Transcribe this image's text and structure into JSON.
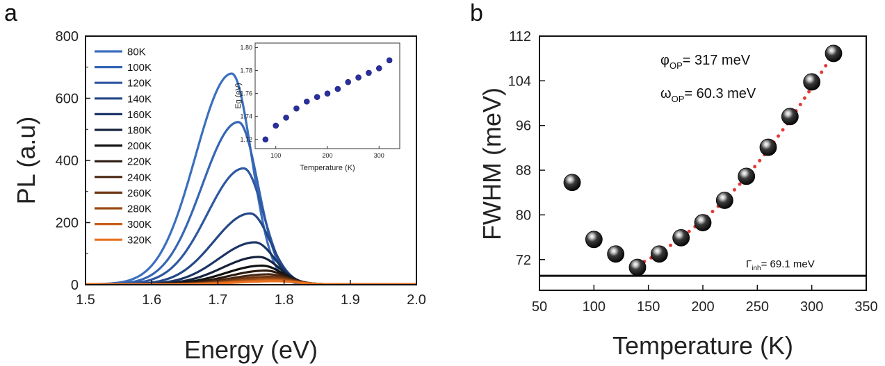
{
  "panels": {
    "a": "a",
    "b": "b"
  },
  "chart_data": [
    {
      "id": "a",
      "type": "line",
      "xlabel": "Energy (eV)",
      "ylabel": "PL (a.u)",
      "xlim": [
        1.5,
        2.0
      ],
      "ylim": [
        0,
        800
      ],
      "xticks": [
        1.5,
        1.6,
        1.7,
        1.8,
        1.9,
        2.0
      ],
      "yticks": [
        0,
        200,
        400,
        600,
        800
      ],
      "legend_position": "top-left",
      "series": [
        {
          "name": "80K",
          "color": "#3b6fbf",
          "peak_x": 1.721,
          "peak_y": 678
        },
        {
          "name": "100K",
          "color": "#3566b4",
          "peak_x": 1.731,
          "peak_y": 522
        },
        {
          "name": "120K",
          "color": "#2d57a0",
          "peak_x": 1.739,
          "peak_y": 373
        },
        {
          "name": "140K",
          "color": "#244786",
          "peak_x": 1.749,
          "peak_y": 228
        },
        {
          "name": "160K",
          "color": "#1c3567",
          "peak_x": 1.756,
          "peak_y": 135
        },
        {
          "name": "180K",
          "color": "#16233e",
          "peak_x": 1.762,
          "peak_y": 88
        },
        {
          "name": "200K",
          "color": "#111111",
          "peak_x": 1.767,
          "peak_y": 60
        },
        {
          "name": "220K",
          "color": "#2c1a10",
          "peak_x": 1.772,
          "peak_y": 44
        },
        {
          "name": "240K",
          "color": "#4a2712",
          "peak_x": 1.776,
          "peak_y": 32
        },
        {
          "name": "260K",
          "color": "#6e3713",
          "peak_x": 1.779,
          "peak_y": 24
        },
        {
          "name": "280K",
          "color": "#9a4a15",
          "peak_x": 1.782,
          "peak_y": 18
        },
        {
          "name": "300K",
          "color": "#c75e1a",
          "peak_x": 1.785,
          "peak_y": 13
        },
        {
          "name": "320K",
          "color": "#e8711f",
          "peak_x": 1.788,
          "peak_y": 10
        }
      ],
      "inset": {
        "type": "scatter",
        "xlabel": "Temperature (K)",
        "ylabel": "Eg (eV)",
        "xlim": [
          60,
          340
        ],
        "ylim": [
          1.712,
          1.804
        ],
        "xticks": [
          100,
          200,
          300
        ],
        "yticks": [
          1.72,
          1.74,
          1.76,
          1.78,
          1.8
        ],
        "ytick_labels": [
          "1.72",
          "1.74",
          "1.76",
          "1.78",
          "1.80"
        ],
        "color": "#2a2f9e",
        "x": [
          80,
          100,
          120,
          140,
          160,
          180,
          200,
          220,
          240,
          260,
          280,
          300,
          320
        ],
        "y": [
          1.72,
          1.732,
          1.739,
          1.747,
          1.753,
          1.757,
          1.76,
          1.764,
          1.77,
          1.774,
          1.778,
          1.782,
          1.789
        ]
      }
    },
    {
      "id": "b",
      "type": "scatter",
      "xlabel": "Temperature (K)",
      "ylabel": "FWHM (meV)",
      "xlim": [
        50,
        350
      ],
      "ylim": [
        66.5,
        112
      ],
      "xticks": [
        50,
        100,
        150,
        200,
        250,
        300,
        350
      ],
      "yticks": [
        72,
        80,
        88,
        96,
        104,
        112
      ],
      "points": {
        "x": [
          80,
          100,
          120,
          140,
          160,
          180,
          200,
          220,
          240,
          260,
          280,
          300,
          320
        ],
        "y": [
          85.8,
          75.6,
          73.0,
          70.6,
          73.0,
          75.9,
          78.6,
          82.6,
          86.9,
          92.1,
          97.6,
          103.8,
          108.9
        ]
      },
      "fit": {
        "color": "#e33a3a",
        "x": [
          140,
          160,
          180,
          200,
          220,
          240,
          260,
          280,
          300,
          320
        ],
        "y": [
          71.0,
          73.1,
          75.9,
          79.0,
          82.6,
          86.8,
          91.6,
          97.0,
          102.8,
          108.9
        ]
      },
      "baseline": {
        "value": 69.1
      },
      "annotations": {
        "phi_symbol": "φ",
        "phi_sub": "OP",
        "phi_value": "= 317 meV",
        "omega_symbol": "ω",
        "omega_sub": "OP",
        "omega_value": "= 60.3 meV",
        "gamma_symbol": "Γ",
        "gamma_sub": "inh",
        "gamma_value": "= 69.1 meV"
      }
    }
  ]
}
